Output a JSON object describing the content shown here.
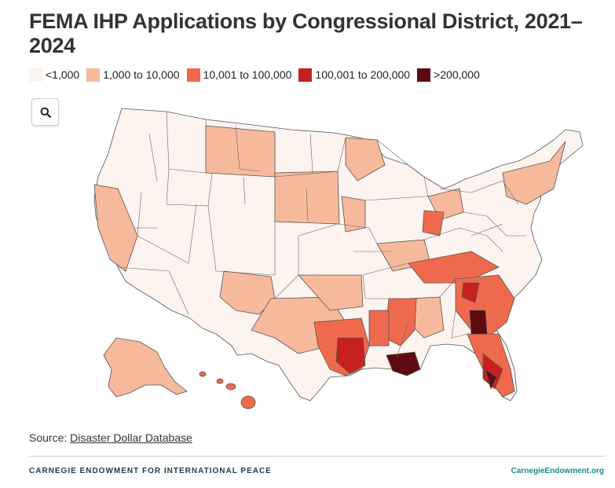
{
  "title": "FEMA IHP Applications by Congressional District, 2021–2024",
  "legend": [
    {
      "label": "<1,000",
      "color": "#fdf3ef"
    },
    {
      "label": "1,000 to 10,000",
      "color": "#f7b99c"
    },
    {
      "label": "10,001 to 100,000",
      "color": "#ef6a4c"
    },
    {
      "label": "100,001 to 200,000",
      "color": "#c8201e"
    },
    {
      "label": ">200,000",
      "color": "#5e0a10"
    }
  ],
  "search_icon": "search-icon",
  "source": {
    "prefix": "Source: ",
    "link_text": "Disaster Dollar Database"
  },
  "footer": {
    "org": "CARNEGIE ENDOWMENT FOR INTERNATIONAL PEACE",
    "site": "CarnegieEndowment.org"
  },
  "colors": {
    "border": "#555555",
    "search_border": "#cfcfcf",
    "org_text": "#1f3b4d",
    "site_text": "#1a8a8a"
  }
}
